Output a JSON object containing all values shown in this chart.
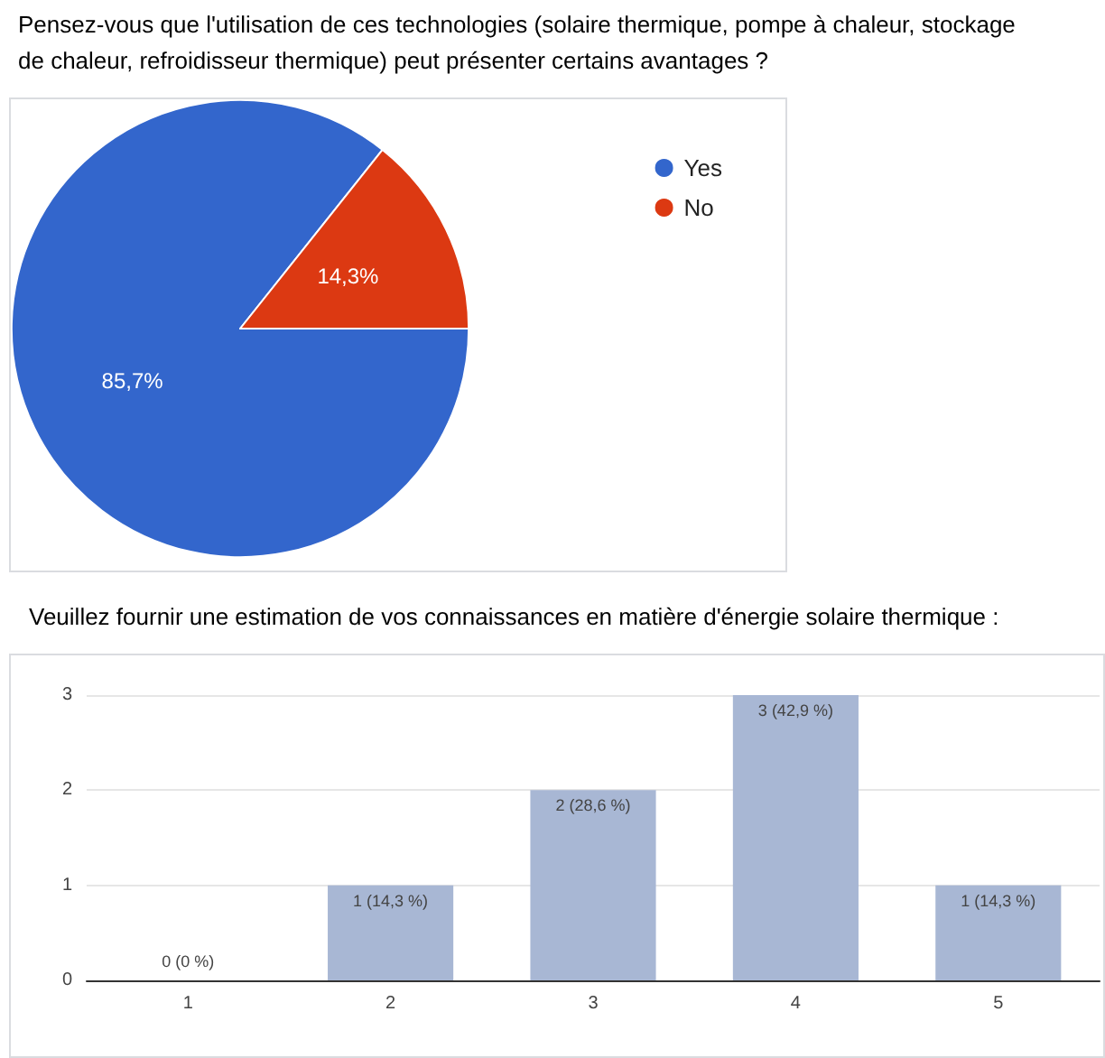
{
  "chart_data": [
    {
      "type": "pie",
      "title": "Pensez-vous que l'utilisation de ces technologies (solaire thermique, pompe à chaleur, stockage de chaleur, refroidisseur thermique) peut présenter certains avantages ?",
      "categories": [
        "Yes",
        "No"
      ],
      "values": [
        85.7,
        14.3
      ],
      "colors": [
        "#3366cc",
        "#dc3912"
      ],
      "value_labels": [
        "85,7%",
        "14,3%"
      ],
      "legend": "top right"
    },
    {
      "type": "bar",
      "title": "Veuillez fournir une estimation de vos connaissances en matière d'énergie solaire thermique :",
      "categories": [
        "1",
        "2",
        "3",
        "4",
        "5"
      ],
      "values": [
        0,
        1,
        2,
        3,
        1
      ],
      "color": "#a8b7d4",
      "value_labels": [
        "0 (0 %)",
        "1 (14,3 %)",
        "2 (28,6 %)",
        "3 (42,9 %)",
        "1 (14,3 %)"
      ],
      "ylim": [
        0,
        3
      ],
      "yticks": [
        0,
        1,
        2,
        3
      ],
      "grid": "y"
    }
  ]
}
